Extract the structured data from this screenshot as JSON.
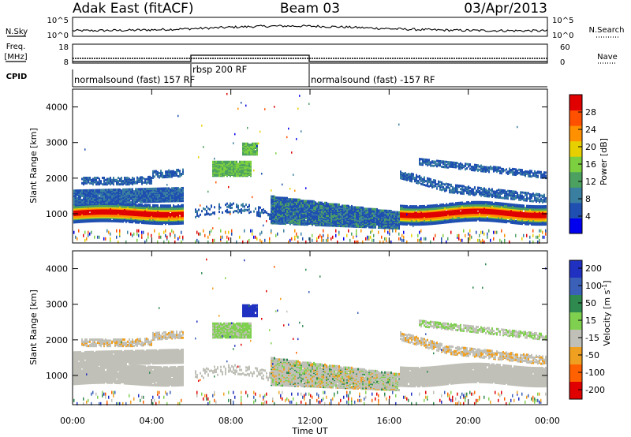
{
  "header": {
    "station": "Adak East (fitACF)",
    "beam": "Beam 03",
    "date": "03/Apr/2013"
  },
  "chart_data": [
    {
      "type": "line",
      "name": "noise",
      "left_label": "N.Sky",
      "right_label": "N.Search",
      "left_ticks": [
        "10^5",
        "10^0"
      ],
      "right_ticks": [
        "10^5",
        "10^0"
      ],
      "yscale": "log"
    },
    {
      "type": "line",
      "name": "frequency-nave",
      "left_label_lines": [
        "Freq.",
        "[MHz]"
      ],
      "right_label": "Nave",
      "left_ticks": [
        "18",
        "8"
      ],
      "right_ticks": [
        "60",
        "0"
      ],
      "cpid_label": "CPID",
      "cpid_segments": [
        {
          "label": "normalsound (fast) 157 RF",
          "start_hour": 0,
          "end_hour": 6
        },
        {
          "label": "rbsp 200 RF",
          "start_hour": 6,
          "end_hour": 12
        },
        {
          "label": "normalsound (fast) -157 RF",
          "start_hour": 12,
          "end_hour": 24
        }
      ]
    },
    {
      "type": "heatmap",
      "name": "power",
      "ylabel": "Slant Range [km]",
      "yticks": [
        "4000",
        "3000",
        "2000",
        "1000"
      ],
      "ytick_values": [
        4000,
        3000,
        2000,
        1000
      ],
      "ylim": [
        180,
        4500
      ],
      "colorbar_label": "Power [dB]",
      "colorbar_ticks": [
        "28",
        "24",
        "20",
        "16",
        "12",
        "8",
        "4"
      ],
      "colorbar_values": [
        28,
        24,
        20,
        16,
        12,
        8,
        4
      ],
      "colorbar_range": [
        0,
        32
      ],
      "colors": [
        "#0000ee",
        "#1f4fb0",
        "#3a7fa0",
        "#4ca060",
        "#7cd040",
        "#e8d000",
        "#ff9000",
        "#ff5000",
        "#e00000"
      ]
    },
    {
      "type": "heatmap",
      "name": "velocity",
      "ylabel": "Slant Range [km]",
      "yticks": [
        "4000",
        "3000",
        "2000",
        "1000"
      ],
      "ytick_values": [
        4000,
        3000,
        2000,
        1000
      ],
      "ylim": [
        180,
        4500
      ],
      "colorbar_label": "Velocity [m s",
      "colorbar_label_sup": "-1",
      "colorbar_label_end": "]",
      "colorbar_ticks": [
        "200",
        "100",
        "50",
        "15",
        "-15",
        "-50",
        "-100",
        "-200"
      ],
      "colors": [
        "#2030c0",
        "#3a60b8",
        "#2f8a4f",
        "#80d050",
        "#c0c0b8",
        "#f0a020",
        "#ff6000",
        "#e00000"
      ],
      "xlabel": "Time UT",
      "xticks": [
        "00:00",
        "04:00",
        "08:00",
        "12:00",
        "16:00",
        "20:00",
        "00:00"
      ],
      "xtick_hours": [
        0,
        4,
        8,
        12,
        16,
        20,
        24
      ]
    }
  ]
}
